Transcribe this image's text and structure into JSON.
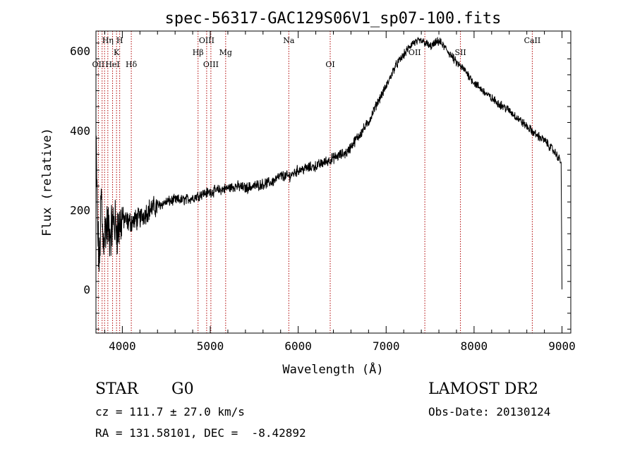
{
  "chart_data": {
    "type": "line",
    "title": "spec-56317-GAC129S06V1_sp07-100.fits",
    "xlabel": "Wavelength (Å)",
    "ylabel": "Flux (relative)",
    "xlim": [
      3700,
      9100
    ],
    "ylim": [
      -110,
      650
    ],
    "x_ticks": [
      4000,
      5000,
      6000,
      7000,
      8000,
      9000
    ],
    "y_ticks": [
      0,
      200,
      400,
      600
    ],
    "grid": false,
    "series": [
      {
        "color": "#000000",
        "x": [
          3700,
          3720,
          3740,
          3760,
          3780,
          3800,
          3830,
          3860,
          3900,
          3950,
          4000,
          4050,
          4100,
          4200,
          4300,
          4400,
          4500,
          4600,
          4700,
          4800,
          4900,
          5000,
          5100,
          5200,
          5300,
          5400,
          5500,
          5600,
          5700,
          5800,
          5900,
          6000,
          6100,
          6200,
          6300,
          6400,
          6500,
          6560,
          6600,
          6700,
          6800,
          6900,
          7000,
          7100,
          7200,
          7300,
          7400,
          7450,
          7500,
          7600,
          7700,
          7800,
          7900,
          8000,
          8100,
          8200,
          8300,
          8400,
          8500,
          8600,
          8700,
          8800,
          8900,
          8950,
          8990,
          9000
        ],
        "y": [
          380,
          140,
          60,
          240,
          120,
          150,
          160,
          140,
          170,
          150,
          180,
          170,
          170,
          180,
          200,
          210,
          220,
          225,
          225,
          230,
          240,
          245,
          250,
          255,
          260,
          255,
          260,
          265,
          270,
          285,
          285,
          300,
          305,
          310,
          320,
          330,
          340,
          345,
          360,
          390,
          420,
          470,
          510,
          560,
          590,
          620,
          625,
          620,
          610,
          625,
          600,
          570,
          550,
          520,
          500,
          480,
          465,
          450,
          430,
          410,
          390,
          375,
          350,
          335,
          320,
          0
        ]
      }
    ],
    "spectral_lines": [
      {
        "label": "OII",
        "x": 3727,
        "row": 3
      },
      {
        "label": "Hη",
        "x": 3835,
        "row": 1
      },
      {
        "label": "H",
        "x": 3970,
        "row": 1
      },
      {
        "label": "K",
        "x": 3934,
        "row": 2
      },
      {
        "label": "HeI",
        "x": 3889,
        "row": 3
      },
      {
        "label": "Hδ",
        "x": 4102,
        "row": 3
      },
      {
        "label": "OIII",
        "x": 4959,
        "row": 1
      },
      {
        "label": "Hβ",
        "x": 4861,
        "row": 2
      },
      {
        "label": "OIII",
        "x": 5007,
        "row": 3
      },
      {
        "label": "Mg",
        "x": 5175,
        "row": 2
      },
      {
        "label": "Na",
        "x": 5893,
        "row": 1
      },
      {
        "label": "OI",
        "x": 6364,
        "row": 3
      },
      {
        "label": "OII",
        "x": 7325,
        "row": 2
      },
      {
        "label": "SII",
        "x": 7845,
        "row": 2
      },
      {
        "label": "CaII",
        "x": 8662,
        "row": 1
      }
    ],
    "vertical_lines": [
      3727,
      3770,
      3798,
      3835,
      3889,
      3934,
      3970,
      4102,
      4861,
      4959,
      5007,
      5175,
      5893,
      6364,
      7440,
      7845,
      8662
    ]
  },
  "info": {
    "object_class": "STAR",
    "subclass": "G0",
    "survey": "LAMOST DR2",
    "cz": "cz = 111.7 ± 27.0 km/s",
    "obs_date": "Obs-Date: 20130124",
    "coords": "RA = 131.58101, DEC =  -8.42892"
  }
}
